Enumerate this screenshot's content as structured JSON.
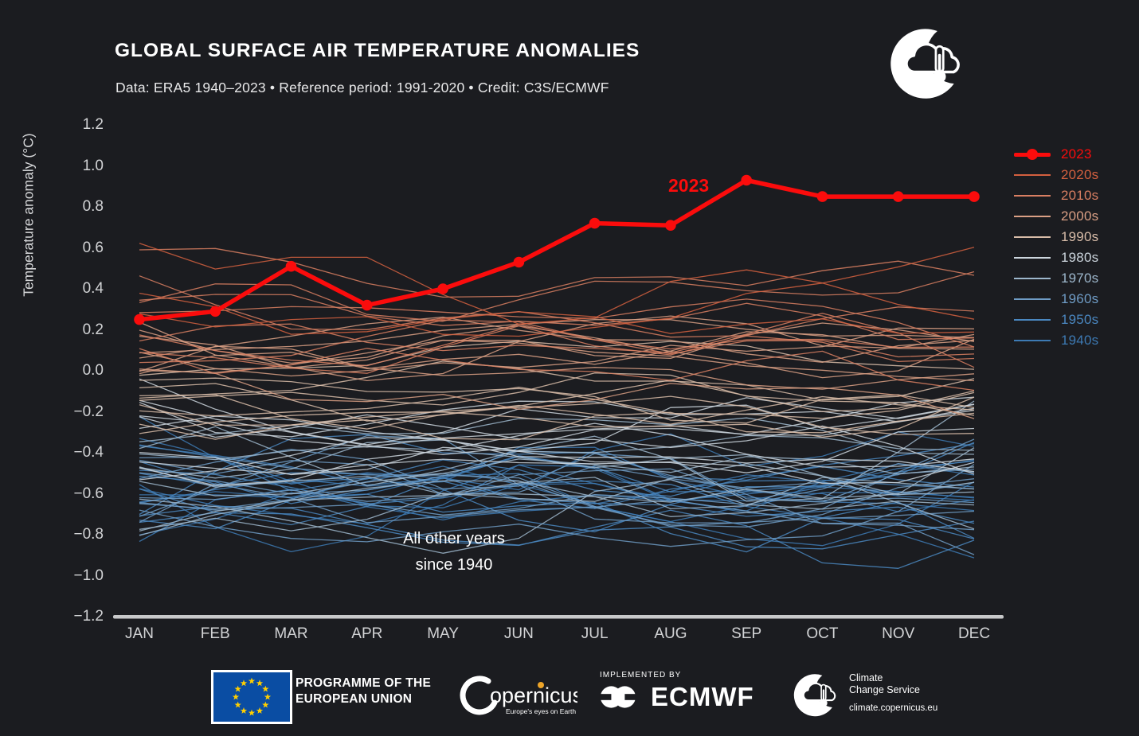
{
  "header": {
    "title": "GLOBAL SURFACE AIR TEMPERATURE ANOMALIES",
    "subtitle": "Data: ERA5 1940–2023 • Reference period: 1991-2020 • Credit: C3S/ECMWF"
  },
  "chart_data": {
    "type": "line",
    "title": "GLOBAL SURFACE AIR TEMPERATURE ANOMALIES",
    "x_categories": [
      "JAN",
      "FEB",
      "MAR",
      "APR",
      "MAY",
      "JUN",
      "JUL",
      "AUG",
      "SEP",
      "OCT",
      "NOV",
      "DEC"
    ],
    "y_axis_label": "Temperature anomaly (°C)",
    "ylim": [
      -1.2,
      1.2
    ],
    "y_tick_values": [
      1.2,
      1.0,
      0.8,
      0.6,
      0.4,
      0.2,
      0.0,
      -0.2,
      -0.4,
      -0.6,
      -0.8,
      -1.0,
      -1.2
    ],
    "grid": false,
    "legend_position": "right",
    "annotation": {
      "line1": "All other years",
      "line2": "since 1940"
    },
    "highlight_series": {
      "label": "2023",
      "color": "#fb0c0c",
      "values": [
        0.25,
        0.29,
        0.51,
        0.32,
        0.4,
        0.53,
        0.72,
        0.71,
        0.93,
        0.85,
        0.85,
        0.85
      ]
    },
    "decade_colors": {
      "2020s": "#d4603f",
      "2010s": "#d97f62",
      "2000s": "#dba085",
      "1990s": "#d9bda9",
      "1980s": "#cdd6de",
      "1970s": "#9db7cc",
      "1960s": "#6f9cc6",
      "1950s": "#4a87c0",
      "1940s": "#3d7ab4"
    },
    "legend": [
      {
        "label": "2023",
        "color": "#fb0c0c",
        "style": "highlight"
      },
      {
        "label": "2020s",
        "color": "#d4603f",
        "style": "line"
      },
      {
        "label": "2010s",
        "color": "#d97f62",
        "style": "line"
      },
      {
        "label": "2000s",
        "color": "#dba085",
        "style": "line"
      },
      {
        "label": "1990s",
        "color": "#d9bda9",
        "style": "line"
      },
      {
        "label": "1980s",
        "color": "#cdd6de",
        "style": "line"
      },
      {
        "label": "1970s",
        "color": "#9db7cc",
        "style": "line"
      },
      {
        "label": "1960s",
        "color": "#6f9cc6",
        "style": "line"
      },
      {
        "label": "1950s",
        "color": "#4a87c0",
        "style": "line"
      },
      {
        "label": "1940s",
        "color": "#3d7ab4",
        "style": "line"
      }
    ],
    "background_years": {
      "start_year": 1940,
      "end_year": 2022,
      "annual_anomalies": [
        -0.68,
        -0.55,
        -0.62,
        -0.58,
        -0.48,
        -0.53,
        -0.62,
        -0.61,
        -0.65,
        -0.69,
        -0.76,
        -0.62,
        -0.58,
        -0.51,
        -0.68,
        -0.66,
        -0.76,
        -0.56,
        -0.51,
        -0.56,
        -0.62,
        -0.52,
        -0.56,
        -0.52,
        -0.72,
        -0.68,
        -0.6,
        -0.58,
        -0.63,
        -0.5,
        -0.55,
        -0.66,
        -0.56,
        -0.42,
        -0.65,
        -0.48,
        -0.67,
        -0.38,
        -0.48,
        -0.42,
        -0.32,
        -0.28,
        -0.42,
        -0.28,
        -0.42,
        -0.42,
        -0.34,
        -0.26,
        -0.22,
        -0.28,
        -0.15,
        -0.16,
        -0.3,
        -0.28,
        -0.21,
        -0.1,
        -0.17,
        -0.04,
        0.07,
        -0.13,
        -0.13,
        0.01,
        0.06,
        0.09,
        0.01,
        0.12,
        0.08,
        0.12,
        -0.01,
        0.09,
        0.15,
        0.03,
        0.08,
        0.12,
        0.16,
        0.29,
        0.44,
        0.35,
        0.26,
        0.4,
        0.44,
        0.27,
        0.3
      ]
    }
  },
  "footer": {
    "eu_programme": {
      "line1": "PROGRAMME OF THE",
      "line2": "EUROPEAN UNION"
    },
    "copernicus": {
      "name": "opernicus",
      "tagline": "Europe's eyes on Earth"
    },
    "implemented_by": "IMPLEMENTED BY",
    "ecmwf": "ECMWF",
    "c3s": {
      "line1": "Climate",
      "line2": "Change Service",
      "url": "climate.copernicus.eu"
    }
  }
}
